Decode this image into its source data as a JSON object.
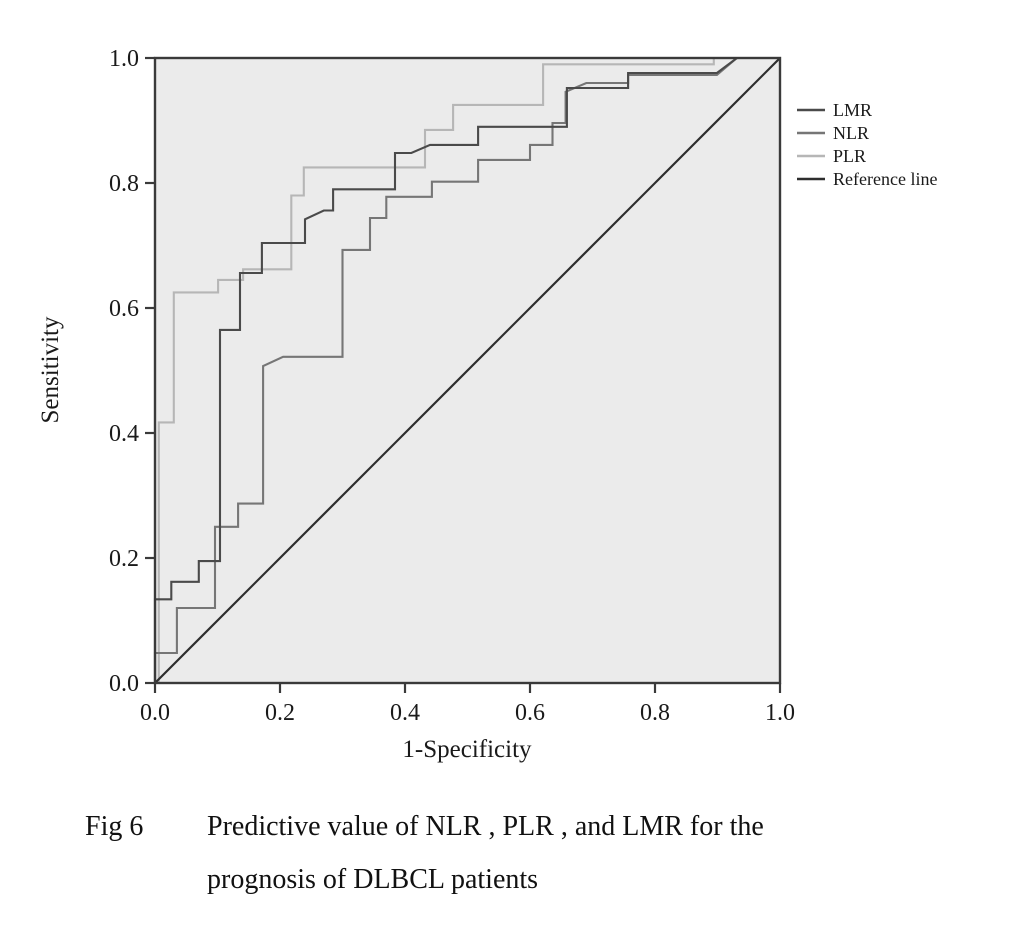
{
  "figure": {
    "caption_prefix": "Fig 6",
    "caption_line1": "Predictive value of NLR , PLR , and LMR for the",
    "caption_line2": "prognosis of DLBCL patients"
  },
  "chart_data": {
    "type": "line",
    "subtype": "roc-step-curves",
    "title": "",
    "xlabel": "1-Specificity",
    "ylabel": "Sensitivity",
    "xlim": [
      0,
      1
    ],
    "ylim": [
      0,
      1
    ],
    "grid": false,
    "plot_bg": "#ebebeb",
    "axis_color": "#3a3a3a",
    "legend_position": "right-outside",
    "x_ticks": [
      0.0,
      0.2,
      0.4,
      0.6,
      0.8,
      1.0
    ],
    "y_ticks": [
      0.0,
      0.2,
      0.4,
      0.6,
      0.8,
      1.0
    ],
    "x_tick_labels": [
      "0.0",
      "0.2",
      "0.4",
      "0.6",
      "0.8",
      "1.0"
    ],
    "y_tick_labels": [
      "0.0",
      "0.2",
      "0.4",
      "0.6",
      "0.8",
      "1.0"
    ],
    "series": [
      {
        "name": "LMR",
        "color": "#4a4a4a",
        "width": 2.1,
        "points": [
          [
            0,
            0
          ],
          [
            0,
            0.134
          ],
          [
            0.026,
            0.134
          ],
          [
            0.026,
            0.162
          ],
          [
            0.07,
            0.162
          ],
          [
            0.07,
            0.195
          ],
          [
            0.104,
            0.195
          ],
          [
            0.104,
            0.565
          ],
          [
            0.136,
            0.565
          ],
          [
            0.136,
            0.656
          ],
          [
            0.171,
            0.656
          ],
          [
            0.171,
            0.704
          ],
          [
            0.24,
            0.704
          ],
          [
            0.24,
            0.742
          ],
          [
            0.27,
            0.756
          ],
          [
            0.285,
            0.756
          ],
          [
            0.285,
            0.79
          ],
          [
            0.384,
            0.79
          ],
          [
            0.384,
            0.848
          ],
          [
            0.41,
            0.848
          ],
          [
            0.44,
            0.861
          ],
          [
            0.517,
            0.861
          ],
          [
            0.517,
            0.89
          ],
          [
            0.659,
            0.89
          ],
          [
            0.659,
            0.952
          ],
          [
            0.757,
            0.952
          ],
          [
            0.757,
            0.976
          ],
          [
            0.899,
            0.976
          ],
          [
            0.931,
            1
          ],
          [
            1,
            1
          ]
        ]
      },
      {
        "name": "NLR",
        "color": "#767676",
        "width": 2.1,
        "points": [
          [
            0,
            0
          ],
          [
            0,
            0.048
          ],
          [
            0.035,
            0.048
          ],
          [
            0.035,
            0.12
          ],
          [
            0.096,
            0.12
          ],
          [
            0.096,
            0.25
          ],
          [
            0.133,
            0.25
          ],
          [
            0.133,
            0.287
          ],
          [
            0.173,
            0.287
          ],
          [
            0.173,
            0.507
          ],
          [
            0.205,
            0.522
          ],
          [
            0.3,
            0.522
          ],
          [
            0.3,
            0.693
          ],
          [
            0.344,
            0.693
          ],
          [
            0.344,
            0.744
          ],
          [
            0.37,
            0.744
          ],
          [
            0.37,
            0.778
          ],
          [
            0.443,
            0.778
          ],
          [
            0.443,
            0.802
          ],
          [
            0.517,
            0.802
          ],
          [
            0.517,
            0.837
          ],
          [
            0.6,
            0.837
          ],
          [
            0.6,
            0.861
          ],
          [
            0.636,
            0.861
          ],
          [
            0.636,
            0.896
          ],
          [
            0.657,
            0.896
          ],
          [
            0.657,
            0.946
          ],
          [
            0.69,
            0.96
          ],
          [
            0.757,
            0.96
          ],
          [
            0.757,
            0.973
          ],
          [
            0.899,
            0.973
          ],
          [
            0.931,
            1
          ],
          [
            1,
            1
          ]
        ]
      },
      {
        "name": "PLR",
        "color": "#b6b6b6",
        "width": 2.1,
        "points": [
          [
            0,
            0
          ],
          [
            0.006,
            0
          ],
          [
            0.006,
            0.417
          ],
          [
            0.03,
            0.417
          ],
          [
            0.03,
            0.625
          ],
          [
            0.101,
            0.625
          ],
          [
            0.101,
            0.645
          ],
          [
            0.141,
            0.645
          ],
          [
            0.141,
            0.662
          ],
          [
            0.218,
            0.662
          ],
          [
            0.218,
            0.78
          ],
          [
            0.238,
            0.78
          ],
          [
            0.238,
            0.825
          ],
          [
            0.432,
            0.825
          ],
          [
            0.432,
            0.885
          ],
          [
            0.477,
            0.885
          ],
          [
            0.477,
            0.925
          ],
          [
            0.621,
            0.925
          ],
          [
            0.621,
            0.99
          ],
          [
            0.894,
            0.99
          ],
          [
            0.894,
            1
          ],
          [
            1,
            1
          ]
        ]
      },
      {
        "name": "Reference line",
        "color": "#2e2e2e",
        "width": 2.2,
        "points": [
          [
            0,
            0
          ],
          [
            1,
            1
          ]
        ]
      }
    ]
  }
}
